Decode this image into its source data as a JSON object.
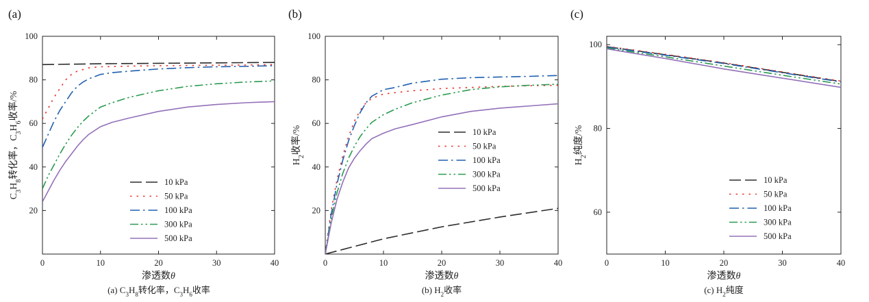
{
  "chart_data": [
    {
      "type": "line",
      "panel_label": "(a)",
      "caption": "(a) C₃H₈转化率，C₃H₆收率",
      "xlabel": "渗透数θ",
      "ylabel": "C₃H₈转化率，C₃H₆收率/%",
      "xlim": [
        0,
        40
      ],
      "ylim": [
        0,
        100
      ],
      "xticks": [
        0,
        10,
        20,
        30,
        40
      ],
      "yticks": [
        20,
        40,
        60,
        80,
        100
      ],
      "legend_position": "lower-right",
      "series": [
        {
          "name": "10 kPa",
          "color": "#2b2b2b",
          "dash": "long-dash",
          "x": [
            0,
            5,
            10,
            20,
            30,
            40
          ],
          "y": [
            87,
            87.2,
            87.4,
            87.6,
            87.8,
            88
          ]
        },
        {
          "name": "50 kPa",
          "color": "#e8322a",
          "dash": "dot",
          "x": [
            0,
            1,
            2,
            3,
            4,
            5,
            6,
            8,
            10,
            15,
            20,
            25,
            30,
            35,
            40
          ],
          "y": [
            62,
            67,
            72,
            76,
            80,
            82.5,
            84,
            85.5,
            86,
            86.3,
            86.5,
            86.6,
            86.7,
            86.8,
            87
          ]
        },
        {
          "name": "100 kPa",
          "color": "#1f5fb0",
          "dash": "dash-dot",
          "x": [
            0,
            1,
            2,
            3,
            4,
            5,
            6,
            7,
            8,
            10,
            12,
            15,
            20,
            25,
            30,
            35,
            40
          ],
          "y": [
            49,
            55,
            61,
            66,
            70,
            74,
            77,
            79,
            80.5,
            82.5,
            83.3,
            84,
            85,
            85.6,
            86,
            86.2,
            86.5
          ]
        },
        {
          "name": "300 kPa",
          "color": "#2a9a50",
          "dash": "dash-dot-dot",
          "x": [
            0,
            1,
            2,
            3,
            4,
            5,
            6,
            7,
            8,
            10,
            12,
            15,
            20,
            25,
            30,
            35,
            40
          ],
          "y": [
            30,
            36,
            41,
            46,
            50.5,
            54.5,
            58,
            61,
            63.5,
            67.5,
            69.5,
            72,
            75,
            77,
            78.2,
            79,
            79.5
          ]
        },
        {
          "name": "500 kPa",
          "color": "#9370b8",
          "dash": "solid",
          "x": [
            0,
            1,
            2,
            3,
            4,
            5,
            6,
            7,
            8,
            10,
            12,
            15,
            20,
            25,
            30,
            35,
            40
          ],
          "y": [
            24,
            29,
            34,
            38.5,
            42.5,
            46,
            49.5,
            52.5,
            55,
            58.5,
            60.5,
            62.5,
            65.5,
            67.5,
            68.7,
            69.5,
            70
          ]
        }
      ]
    },
    {
      "type": "line",
      "panel_label": "(b)",
      "caption": "(b) H₂收率",
      "xlabel": "渗透数θ",
      "ylabel": "H₂收率/%",
      "xlim": [
        0,
        40
      ],
      "ylim": [
        0,
        100
      ],
      "xticks": [
        0,
        10,
        20,
        30,
        40
      ],
      "yticks": [
        20,
        40,
        60,
        80,
        100
      ],
      "legend_position": "center-right",
      "series": [
        {
          "name": "10 kPa",
          "color": "#2b2b2b",
          "dash": "long-dash",
          "x": [
            0,
            10,
            20,
            30,
            40
          ],
          "y": [
            0,
            7,
            12.5,
            17,
            21
          ]
        },
        {
          "name": "50 kPa",
          "color": "#e8322a",
          "dash": "dot",
          "x": [
            0,
            1,
            2,
            3,
            4,
            5,
            6,
            7,
            8,
            10,
            15,
            20,
            25,
            30,
            35,
            40
          ],
          "y": [
            0,
            20,
            34,
            45,
            54,
            61,
            66,
            69.5,
            71.5,
            73.5,
            75,
            76,
            76.5,
            77,
            77.3,
            77.5
          ]
        },
        {
          "name": "100 kPa",
          "color": "#1f5fb0",
          "dash": "dash-dot",
          "x": [
            0,
            1,
            2,
            3,
            4,
            5,
            6,
            7,
            8,
            10,
            12,
            15,
            20,
            25,
            30,
            35,
            40
          ],
          "y": [
            0,
            18,
            32,
            43,
            52,
            59,
            65,
            69.5,
            72.5,
            75.5,
            76.5,
            78.5,
            80.3,
            81,
            81.3,
            81.6,
            82
          ]
        },
        {
          "name": "300 kPa",
          "color": "#2a9a50",
          "dash": "dash-dot-dot",
          "x": [
            0,
            1,
            2,
            3,
            4,
            5,
            6,
            7,
            8,
            10,
            12,
            15,
            20,
            25,
            30,
            35,
            40
          ],
          "y": [
            0,
            16,
            28,
            37,
            44,
            49.5,
            54,
            57.5,
            60.5,
            64,
            66.5,
            69.5,
            73,
            75.5,
            76.8,
            77.5,
            78
          ]
        },
        {
          "name": "500 kPa",
          "color": "#9370b8",
          "dash": "solid",
          "x": [
            0,
            1,
            2,
            3,
            4,
            5,
            6,
            7,
            8,
            10,
            12,
            15,
            20,
            25,
            30,
            35,
            40
          ],
          "y": [
            0,
            14,
            25,
            33,
            39.5,
            44,
            47.5,
            50.5,
            53,
            55.5,
            57.5,
            59.5,
            63,
            65.5,
            67,
            68,
            69
          ]
        }
      ]
    },
    {
      "type": "line",
      "panel_label": "(c)",
      "caption": "(c) H₂纯度",
      "xlabel": "渗透数θ",
      "ylabel": "H₂纯度/%",
      "xlim": [
        0,
        40
      ],
      "ylim": [
        50,
        102
      ],
      "xticks": [
        0,
        10,
        20,
        30,
        40
      ],
      "yticks": [
        60,
        80,
        100
      ],
      "legend_position": "lower-right",
      "series": [
        {
          "name": "10 kPa",
          "color": "#2b2b2b",
          "dash": "long-dash",
          "x": [
            0,
            10,
            20,
            30,
            40
          ],
          "y": [
            99.5,
            97.6,
            95.6,
            93.4,
            91.2
          ]
        },
        {
          "name": "50 kPa",
          "color": "#e8322a",
          "dash": "dot",
          "x": [
            0,
            10,
            20,
            30,
            40
          ],
          "y": [
            99.6,
            97.7,
            95.7,
            93.5,
            91.3
          ]
        },
        {
          "name": "100 kPa",
          "color": "#1f5fb0",
          "dash": "dash-dot",
          "x": [
            0,
            10,
            20,
            30,
            40
          ],
          "y": [
            99.4,
            97.5,
            95.5,
            93.3,
            91.1
          ]
        },
        {
          "name": "300 kPa",
          "color": "#2a9a50",
          "dash": "dash-dot-dot",
          "x": [
            0,
            10,
            20,
            30,
            40
          ],
          "y": [
            99.2,
            97.1,
            94.9,
            92.7,
            90.6
          ]
        },
        {
          "name": "500 kPa",
          "color": "#9370b8",
          "dash": "solid",
          "x": [
            0,
            10,
            20,
            30,
            40
          ],
          "y": [
            99.0,
            96.7,
            94.2,
            92.0,
            89.8
          ]
        }
      ]
    }
  ]
}
